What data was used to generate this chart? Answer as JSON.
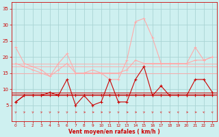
{
  "x": [
    0,
    1,
    2,
    3,
    4,
    5,
    6,
    7,
    8,
    9,
    10,
    11,
    12,
    13,
    14,
    15,
    16,
    17,
    18,
    19,
    20,
    21,
    22,
    23
  ],
  "series_gust_light": [
    23,
    18,
    17,
    16,
    14,
    18,
    21,
    15,
    15,
    16,
    15,
    13,
    13,
    19,
    31,
    32,
    26,
    18,
    18,
    18,
    18,
    23,
    19,
    20
  ],
  "series_avg_light": [
    18,
    17,
    16,
    15,
    14,
    16,
    18,
    15,
    15,
    15,
    15,
    15,
    15,
    16,
    19,
    18,
    18,
    18,
    18,
    18,
    18,
    19,
    19,
    20
  ],
  "series_gust_dark": [
    6,
    8,
    8,
    8,
    9,
    8,
    13,
    5,
    8,
    5,
    6,
    13,
    6,
    6,
    13,
    17,
    8,
    11,
    8,
    8,
    8,
    13,
    13,
    9
  ],
  "series_avg_dark": [
    6,
    8,
    8,
    8,
    8,
    8,
    8,
    8,
    8,
    8,
    8,
    8,
    8,
    8,
    8,
    8,
    8,
    8,
    8,
    8,
    8,
    8,
    8,
    8
  ],
  "hline_light1": 18,
  "hline_light2": 17,
  "hline_light3": 15,
  "hline_dark1": 9,
  "hline_dark2": 8,
  "hline_dark3": 8,
  "ylim": [
    0,
    37
  ],
  "yticks": [
    5,
    10,
    15,
    20,
    25,
    30,
    35
  ],
  "xticks": [
    0,
    1,
    2,
    3,
    4,
    5,
    6,
    7,
    8,
    9,
    10,
    11,
    12,
    13,
    14,
    15,
    16,
    17,
    18,
    19,
    20,
    21,
    22,
    23
  ],
  "xlabel": "Vent moyen/en rafales ( km/h )",
  "bg_color": "#cef0f0",
  "grid_color": "#aad4d4",
  "color_dark_red": "#cc0000",
  "color_light_red": "#ffaaaa",
  "color_arrow": "#dd4444",
  "arrow_directions": [
    45,
    45,
    45,
    45,
    45,
    45,
    45,
    90,
    90,
    90,
    90,
    45,
    45,
    90,
    90,
    45,
    45,
    315,
    315,
    315,
    90,
    90,
    315,
    315
  ]
}
